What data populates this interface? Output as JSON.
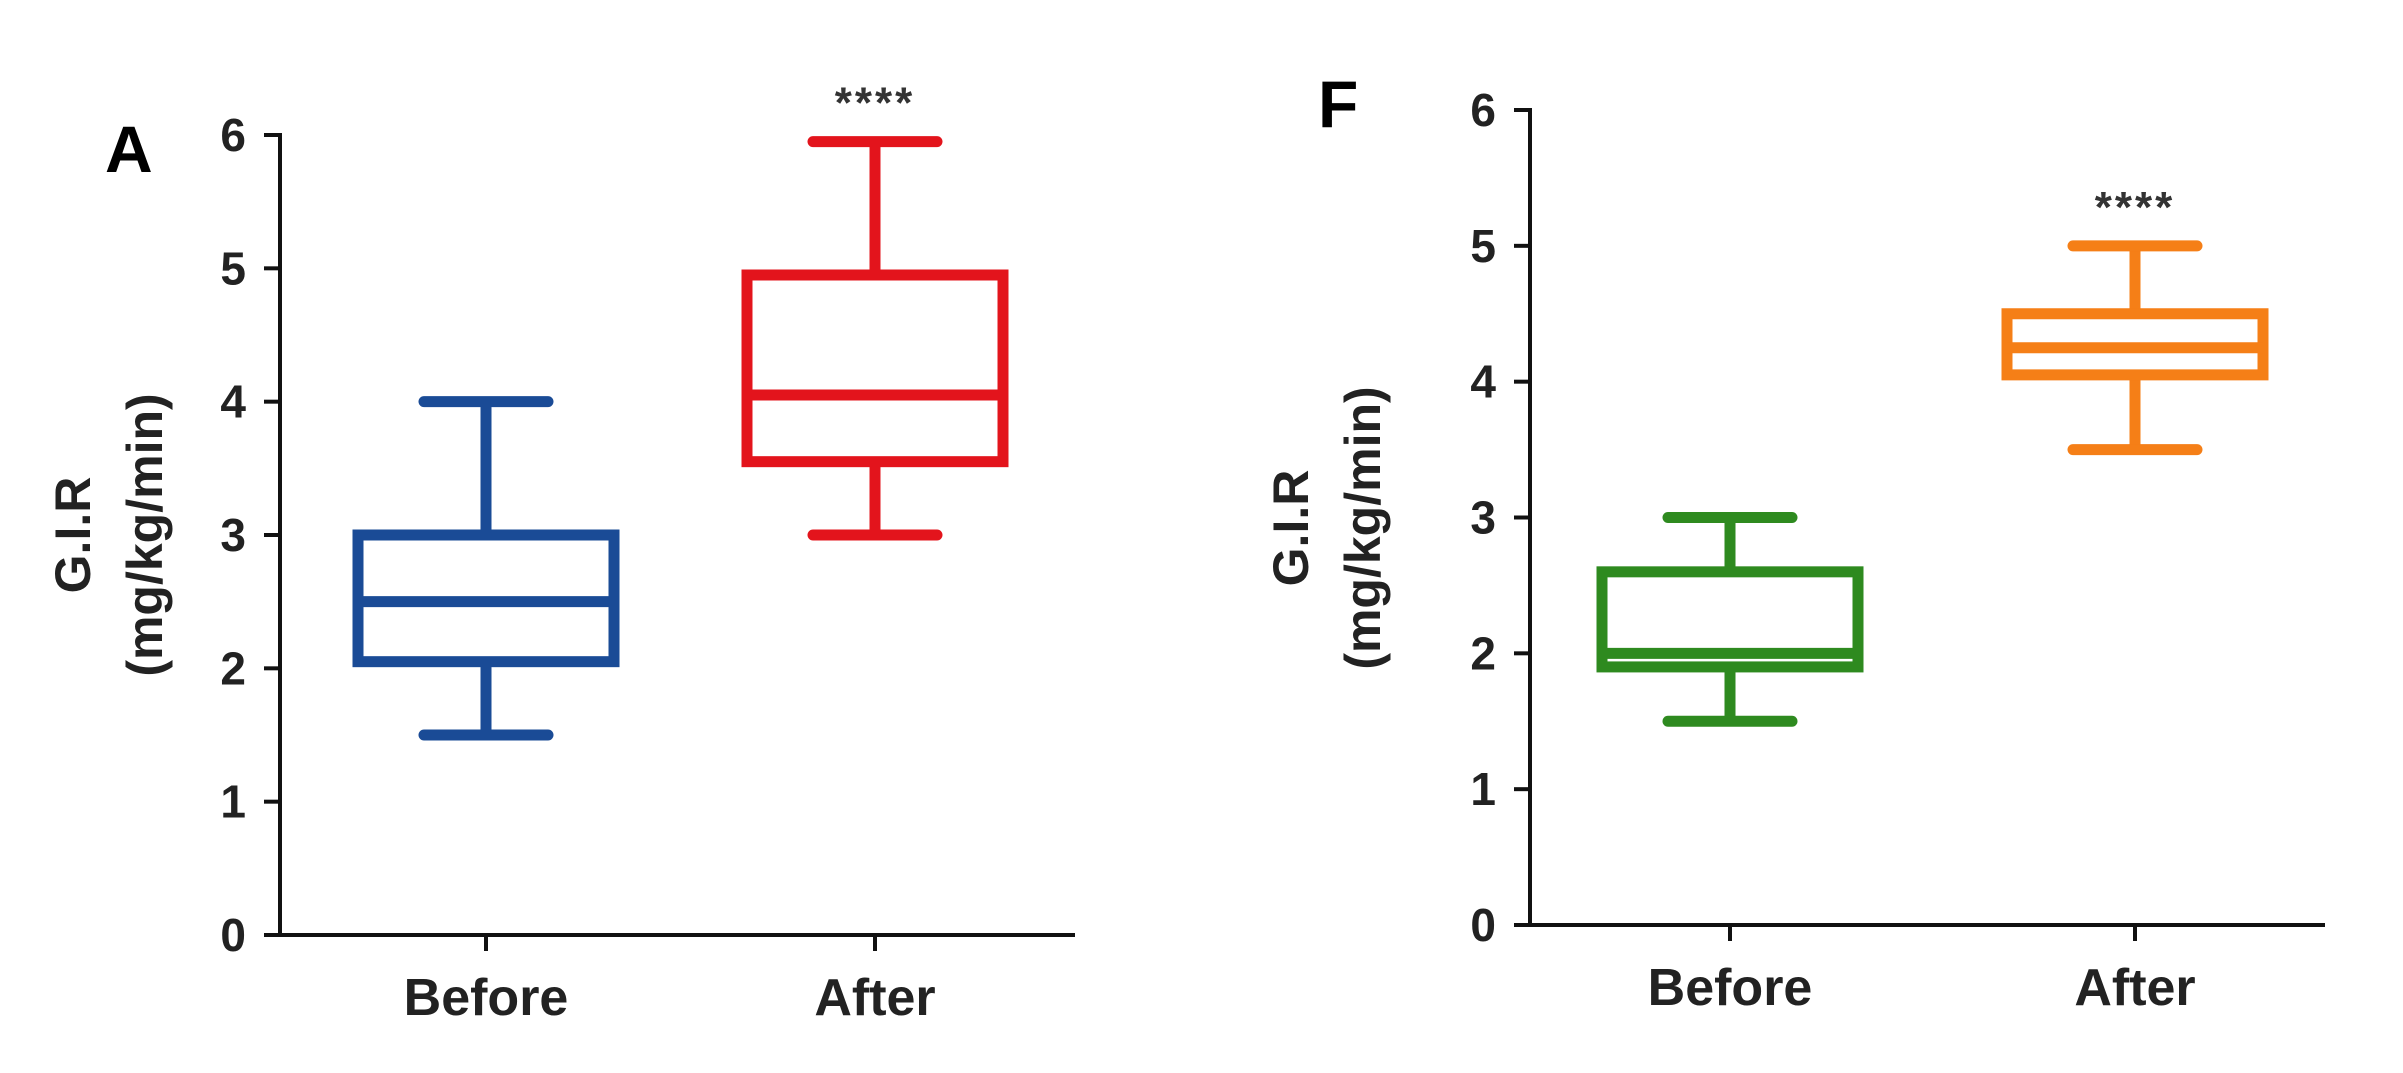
{
  "chart_data": [
    {
      "panel_label": "A",
      "type": "boxplot",
      "ylabel": [
        "G.I.R",
        "(mg/kg/min)"
      ],
      "ylim": [
        0,
        6
      ],
      "yticks": [
        0,
        1,
        2,
        3,
        4,
        5,
        6
      ],
      "categories": [
        "Before",
        "After"
      ],
      "boxes": [
        {
          "category": "Before",
          "min": 1.5,
          "q1": 2.05,
          "median": 2.5,
          "q3": 3.0,
          "max": 4.0,
          "color": "#1a4b96"
        },
        {
          "category": "After",
          "min": 3.0,
          "q1": 3.55,
          "median": 4.05,
          "q3": 4.95,
          "max": 5.95,
          "color": "#e3141c"
        }
      ],
      "annotations": [
        {
          "category": "After",
          "text": "****"
        }
      ],
      "grid": false,
      "legend": "none"
    },
    {
      "panel_label": "F",
      "type": "boxplot",
      "ylabel": [
        "G.I.R",
        "(mg/kg/min)"
      ],
      "ylim": [
        0,
        6
      ],
      "yticks": [
        0,
        1,
        2,
        3,
        4,
        5,
        6
      ],
      "categories": [
        "Before",
        "After"
      ],
      "boxes": [
        {
          "category": "Before",
          "min": 1.5,
          "q1": 1.9,
          "median": 2.0,
          "q3": 2.6,
          "max": 3.0,
          "color": "#2e8a1f"
        },
        {
          "category": "After",
          "min": 3.5,
          "q1": 4.05,
          "median": 4.25,
          "q3": 4.5,
          "max": 5.0,
          "color": "#f57f17"
        }
      ],
      "annotations": [
        {
          "category": "After",
          "text": "****"
        }
      ],
      "grid": false,
      "legend": "none"
    }
  ]
}
